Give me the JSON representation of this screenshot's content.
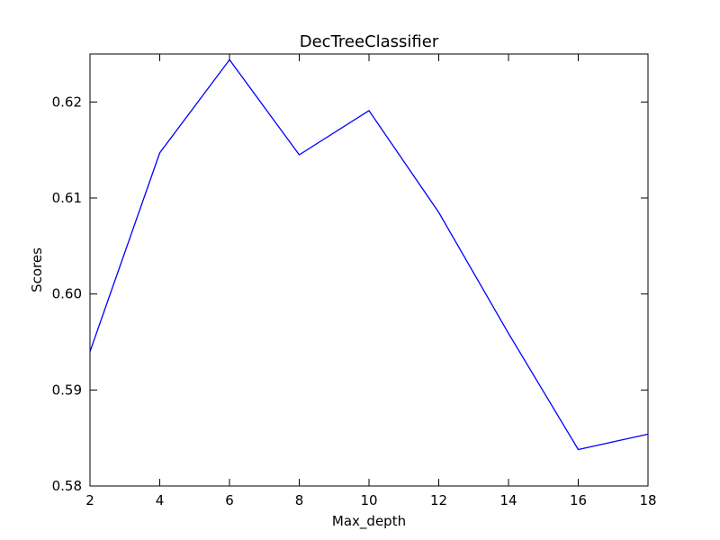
{
  "chart_data": {
    "type": "line",
    "title": "DecTreeClassifier",
    "xlabel": "Max_depth",
    "ylabel": "Scores",
    "xlim": [
      2,
      18
    ],
    "ylim": [
      0.58,
      0.625
    ],
    "xticks": [
      2,
      4,
      6,
      8,
      10,
      12,
      14,
      16,
      18
    ],
    "xtick_labels": [
      "2",
      "4",
      "6",
      "8",
      "10",
      "12",
      "14",
      "16",
      "18"
    ],
    "yticks": [
      0.58,
      0.59,
      0.6,
      0.61,
      0.62
    ],
    "ytick_labels": [
      "0.58",
      "0.59",
      "0.60",
      "0.61",
      "0.62"
    ],
    "grid": false,
    "series": [
      {
        "color": "#0000ff",
        "x": [
          2,
          4,
          6,
          8,
          10,
          12,
          14,
          16,
          18
        ],
        "y": [
          0.594,
          0.6147,
          0.6244,
          0.6145,
          0.6191,
          0.6085,
          0.5959,
          0.5838,
          0.5854
        ]
      }
    ]
  }
}
